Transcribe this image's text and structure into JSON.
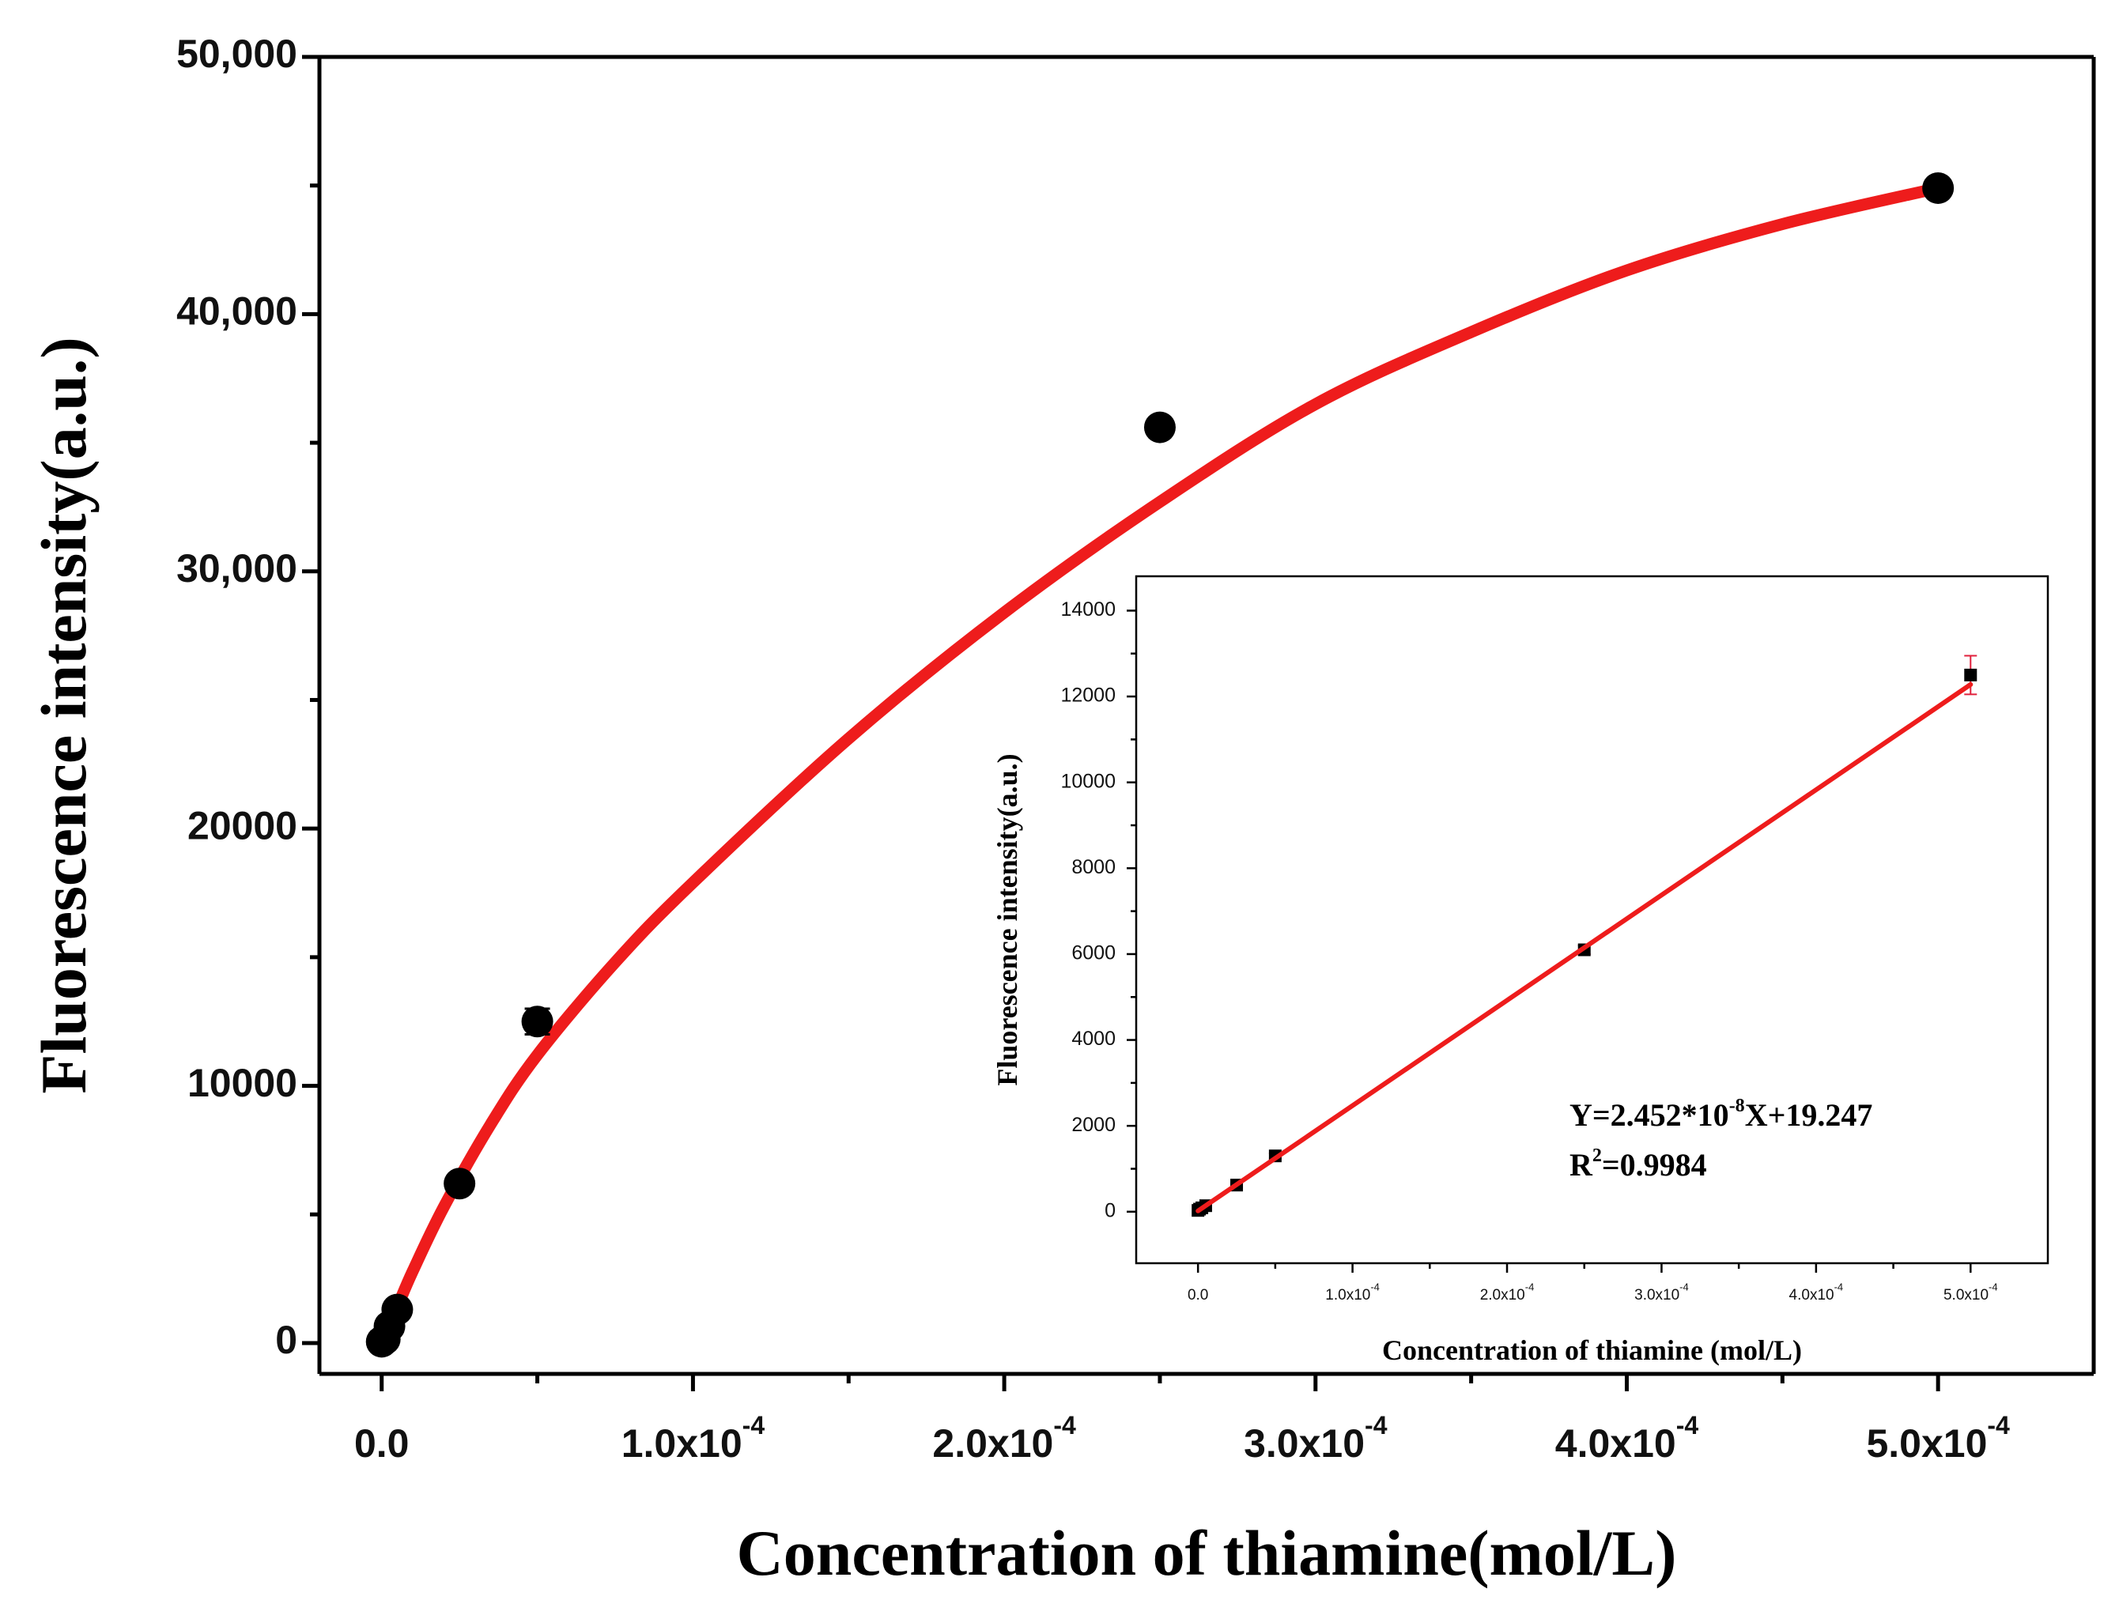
{
  "chart_data": [
    {
      "type": "scatter",
      "title": "",
      "xlabel": "Concentration of thiamine(mol/L)",
      "ylabel": "Fluorescence intensity(a.u.)",
      "xlim": [
        -2e-05,
        0.00055
      ],
      "ylim": [
        -1200,
        50000
      ],
      "x_ticks": [
        0,
        0.0001,
        0.0002,
        0.0003,
        0.0004,
        0.0005
      ],
      "x_tick_labels": [
        {
          "mantissa": "0.0",
          "exp": ""
        },
        {
          "mantissa": "1.0x10",
          "exp": "-4"
        },
        {
          "mantissa": "2.0x10",
          "exp": "-4"
        },
        {
          "mantissa": "3.0x10",
          "exp": "-4"
        },
        {
          "mantissa": "4.0x10",
          "exp": "-4"
        },
        {
          "mantissa": "5.0x10",
          "exp": "-4"
        }
      ],
      "y_ticks": [
        0,
        10000,
        20000,
        30000,
        40000,
        50000
      ],
      "y_tick_labels": [
        "0",
        "10000",
        "20000",
        "30,000",
        "40,000",
        "50,000"
      ],
      "series": [
        {
          "name": "data",
          "color": "#000000",
          "x": [
            0,
            1e-06,
            2.5e-06,
            5e-06,
            2.5e-05,
            5e-05,
            0.00025,
            0.0005
          ],
          "y": [
            50,
            150,
            650,
            1300,
            6200,
            12500,
            35600,
            44900
          ],
          "error": [
            0,
            0,
            0,
            0,
            150,
            500,
            300,
            200
          ]
        },
        {
          "name": "fit",
          "type": "line",
          "color": "#ee1c1c",
          "x": [
            0,
            5e-06,
            1e-05,
            2e-05,
            3.5e-05,
            5e-05,
            7.5e-05,
            0.0001,
            0.00015,
            0.0002,
            0.00025,
            0.0003,
            0.00035,
            0.0004,
            0.00045,
            0.0005
          ],
          "y": [
            0,
            1400,
            2800,
            5300,
            8500,
            11200,
            14800,
            17900,
            23500,
            28400,
            32700,
            36500,
            39300,
            41700,
            43500,
            44900
          ]
        }
      ]
    },
    {
      "type": "scatter",
      "title": "",
      "xlabel": "Concentration of  thiamine (mol/L)",
      "ylabel": "Fluorescence intensity(a.u.)",
      "xlim": [
        -4e-05,
        0.00055
      ],
      "ylim": [
        -1200,
        14800
      ],
      "x_ticks": [
        0,
        0.0001,
        0.0002,
        0.0003,
        0.0004,
        0.0005
      ],
      "x_tick_labels": [
        {
          "mantissa": "0.0",
          "exp": ""
        },
        {
          "mantissa": "1.0x10",
          "exp": "-4"
        },
        {
          "mantissa": "2.0x10",
          "exp": "-4"
        },
        {
          "mantissa": "3.0x10",
          "exp": "-4"
        },
        {
          "mantissa": "4.0x10",
          "exp": "-4"
        },
        {
          "mantissa": "5.0x10",
          "exp": "-4"
        }
      ],
      "y_ticks": [
        0,
        2000,
        4000,
        6000,
        8000,
        10000,
        12000,
        14000
      ],
      "y_tick_labels": [
        "0",
        "2000",
        "4000",
        "6000",
        "8000",
        "10000",
        "12000",
        "14000"
      ],
      "annotation": {
        "line1_prefix": "Y=2.452*10",
        "line1_exp": "-8",
        "line1_suffix": "X+19.247",
        "line2_prefix": "R",
        "line2_exp": "2",
        "line2_suffix": "=0.9984"
      },
      "series": [
        {
          "name": "data",
          "color": "#000000",
          "x": [
            0,
            1e-06,
            2.5e-06,
            5e-06,
            2.5e-05,
            5e-05,
            0.00025,
            0.0005
          ],
          "y": [
            30,
            60,
            90,
            140,
            620,
            1300,
            6100,
            12500
          ],
          "error": [
            0,
            0,
            0,
            0,
            40,
            60,
            100,
            450
          ]
        },
        {
          "name": "fit",
          "type": "line",
          "color": "#ee1c1c",
          "x": [
            0,
            0.0005
          ],
          "y": [
            19.247,
            12279
          ]
        }
      ]
    }
  ]
}
